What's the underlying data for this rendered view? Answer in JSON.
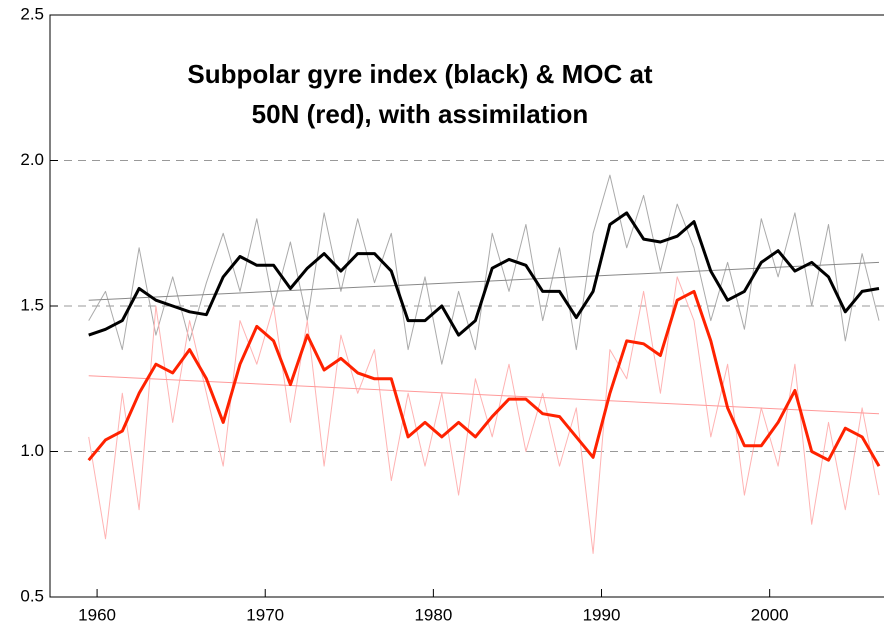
{
  "chart_data": {
    "type": "line",
    "title": [
      "Subpolar gyre index (black) & MOC at",
      "50N (red), with assimilation"
    ],
    "x": [
      1959.5,
      1960.5,
      1961.5,
      1962.5,
      1963.5,
      1964.5,
      1965.5,
      1966.5,
      1967.5,
      1968.5,
      1969.5,
      1970.5,
      1971.5,
      1972.5,
      1973.5,
      1974.5,
      1975.5,
      1976.5,
      1977.5,
      1978.5,
      1979.5,
      1980.5,
      1981.5,
      1982.5,
      1983.5,
      1984.5,
      1985.5,
      1986.5,
      1987.5,
      1988.5,
      1989.5,
      1990.5,
      1991.5,
      1992.5,
      1993.5,
      1994.5,
      1995.5,
      1996.5,
      1997.5,
      1998.5,
      1999.5,
      2000.5,
      2001.5,
      2002.5,
      2003.5,
      2004.5,
      2005.5,
      2006.5
    ],
    "series": [
      {
        "color": "#aaaaaa",
        "width": 1,
        "values": [
          1.45,
          1.55,
          1.35,
          1.7,
          1.4,
          1.6,
          1.38,
          1.58,
          1.75,
          1.55,
          1.8,
          1.5,
          1.72,
          1.45,
          1.82,
          1.55,
          1.8,
          1.58,
          1.75,
          1.35,
          1.6,
          1.3,
          1.55,
          1.35,
          1.75,
          1.55,
          1.78,
          1.45,
          1.7,
          1.35,
          1.75,
          1.95,
          1.7,
          1.88,
          1.62,
          1.85,
          1.7,
          1.45,
          1.65,
          1.42,
          1.8,
          1.6,
          1.82,
          1.5,
          1.78,
          1.38,
          1.68,
          1.45
        ]
      },
      {
        "color": "#ffb3b3",
        "width": 1,
        "values": [
          1.05,
          0.7,
          1.2,
          0.8,
          1.5,
          1.1,
          1.45,
          1.2,
          0.95,
          1.45,
          1.3,
          1.5,
          1.1,
          1.45,
          0.95,
          1.4,
          1.2,
          1.35,
          0.9,
          1.2,
          0.95,
          1.2,
          0.85,
          1.25,
          1.05,
          1.3,
          1.0,
          1.2,
          0.95,
          1.15,
          0.65,
          1.35,
          1.25,
          1.55,
          1.2,
          1.6,
          1.45,
          1.05,
          1.3,
          0.85,
          1.15,
          0.95,
          1.3,
          0.75,
          1.1,
          0.8,
          1.15,
          0.85
        ]
      },
      {
        "color": "#888888",
        "width": 1,
        "x": [
          1959.5,
          2006.5
        ],
        "values": [
          1.52,
          1.65
        ]
      },
      {
        "color": "#ff9999",
        "width": 1,
        "x": [
          1959.5,
          2006.5
        ],
        "values": [
          1.26,
          1.13
        ]
      },
      {
        "color": "#000000",
        "width": 3,
        "values": [
          1.4,
          1.42,
          1.45,
          1.56,
          1.52,
          1.5,
          1.48,
          1.47,
          1.6,
          1.67,
          1.64,
          1.64,
          1.56,
          1.63,
          1.68,
          1.62,
          1.68,
          1.68,
          1.62,
          1.45,
          1.45,
          1.5,
          1.4,
          1.45,
          1.63,
          1.66,
          1.64,
          1.55,
          1.55,
          1.46,
          1.55,
          1.78,
          1.82,
          1.73,
          1.72,
          1.74,
          1.79,
          1.62,
          1.52,
          1.55,
          1.65,
          1.69,
          1.62,
          1.65,
          1.6,
          1.48,
          1.55,
          1.56
        ]
      },
      {
        "color": "#ff2200",
        "width": 3,
        "values": [
          0.97,
          1.04,
          1.07,
          1.2,
          1.3,
          1.27,
          1.35,
          1.25,
          1.1,
          1.3,
          1.43,
          1.38,
          1.23,
          1.4,
          1.28,
          1.32,
          1.27,
          1.25,
          1.25,
          1.05,
          1.1,
          1.05,
          1.1,
          1.05,
          1.12,
          1.18,
          1.18,
          1.13,
          1.12,
          1.05,
          0.98,
          1.2,
          1.38,
          1.37,
          1.33,
          1.52,
          1.55,
          1.38,
          1.15,
          1.02,
          1.02,
          1.1,
          1.21,
          1.0,
          0.97,
          1.08,
          1.05,
          0.95
        ]
      }
    ],
    "xlim": [
      1957.2,
      2006.8
    ],
    "ylim": [
      0.5,
      2.5
    ],
    "xticks": [
      1960,
      1970,
      1980,
      1990,
      2000
    ],
    "yticks": [
      {
        "value": 0.5,
        "label": "0.5"
      },
      {
        "value": 1,
        "label": "1.0"
      },
      {
        "value": 1.5,
        "label": "1.5"
      },
      {
        "value": 2,
        "label": "2.0"
      },
      {
        "value": 2.5,
        "label": "2.5"
      }
    ],
    "grid": true
  }
}
